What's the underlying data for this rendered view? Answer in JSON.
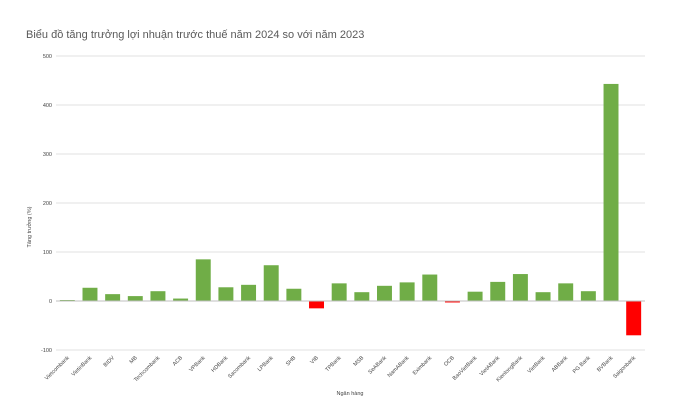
{
  "chart_data": {
    "type": "bar",
    "title": "Biểu đồ tăng trưởng lợi nhuận trước thuế năm 2024 so với năm 2023",
    "xlabel": "Ngân hàng",
    "ylabel": "Tăng trưởng (%)",
    "ylim": [
      -100,
      500
    ],
    "yticks": [
      -100,
      0,
      100,
      200,
      300,
      400,
      500
    ],
    "grid": true,
    "legend": "none",
    "colors": {
      "positive": "#70ad47",
      "negative": "#ff0000"
    },
    "categories": [
      "Vietcombank",
      "VietinBank",
      "BIDV",
      "MB",
      "Techcombank",
      "ACB",
      "VPBank",
      "HDBank",
      "Sacombank",
      "LPBank",
      "SHB",
      "VIB",
      "TPBank",
      "MSB",
      "SeABank",
      "NamABank",
      "Eximbank",
      "OCB",
      "BaoVietBank",
      "VietABank",
      "KienlongBank",
      "VietBank",
      "ABBank",
      "PG Bank",
      "BVBank",
      "Saigonbank"
    ],
    "values": [
      2,
      27,
      14,
      10,
      20,
      5,
      85,
      28,
      33,
      73,
      25,
      -15,
      36,
      18,
      31,
      38,
      54,
      -3,
      19,
      39,
      55,
      18,
      36,
      20,
      443,
      -70
    ]
  }
}
